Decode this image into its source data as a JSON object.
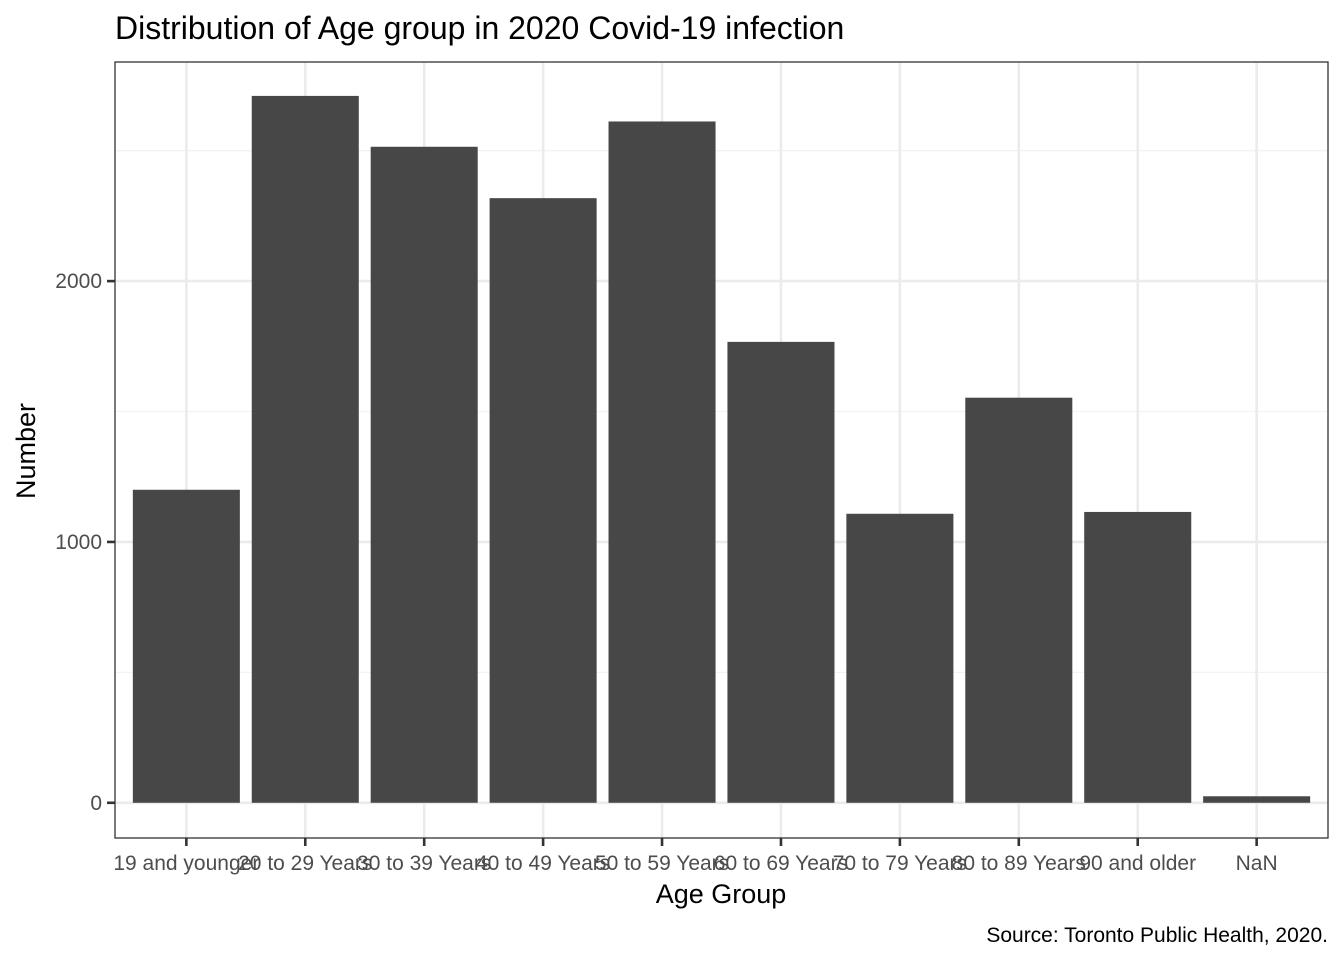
{
  "chart_data": {
    "type": "bar",
    "title": "Distribution of Age group in 2020 Covid-19 infection",
    "xlabel": "Age Group",
    "ylabel": "Number",
    "caption": "Source: Toronto Public Health, 2020.",
    "categories": [
      "19 and younger",
      "20 to 29 Years",
      "30 to 39 Years",
      "40 to 49 Years",
      "50 to 59 Years",
      "60 to 69 Years",
      "70 to 79 Years",
      "80 to 89 Years",
      "90 and older",
      "NaN"
    ],
    "values": [
      1200,
      2710,
      2515,
      2318,
      2612,
      1767,
      1108,
      1553,
      1115,
      25
    ],
    "ylim": [
      -135,
      2840
    ],
    "yticks": [
      0,
      1000,
      2000
    ],
    "grid": true,
    "legend": "none",
    "colors": {
      "bar": "#474747",
      "grid_major": "#ebebeb",
      "grid_minor": "#f3f3f3",
      "panel_border": "#333333",
      "tick": "#333333"
    }
  }
}
